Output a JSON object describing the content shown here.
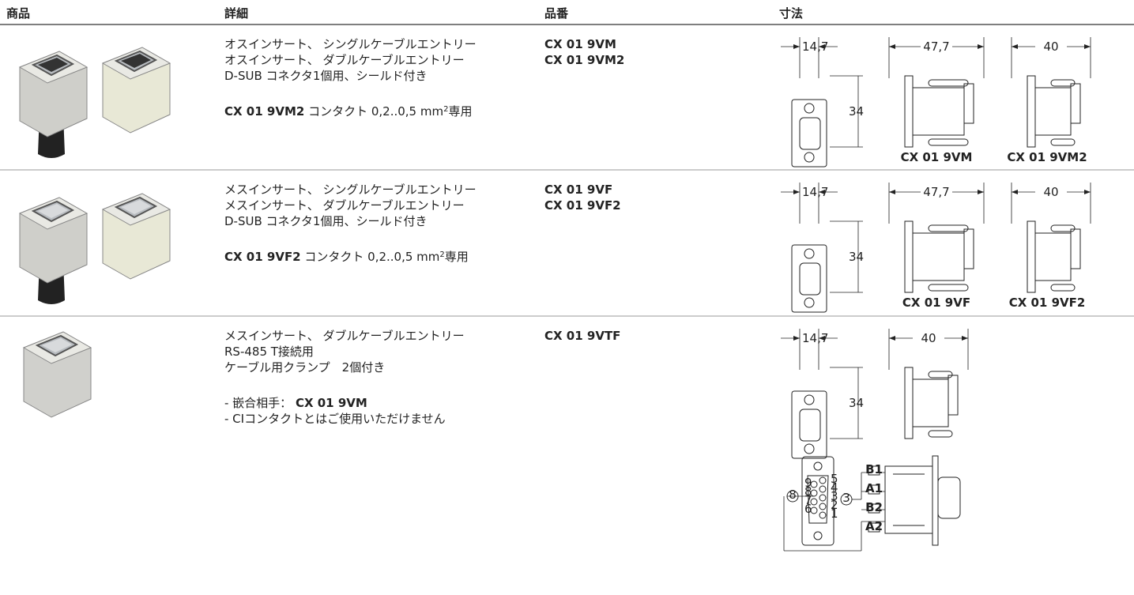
{
  "header": {
    "columns": [
      "商品",
      "詳細",
      "品番",
      "寸法"
    ]
  },
  "rows": [
    {
      "details": [
        [
          [
            {
              "text": "オスインサート、 シングルケーブルエントリー"
            }
          ],
          [
            {
              "text": "オスインサート、 ダブルケーブルエントリー"
            }
          ],
          [
            {
              "text": "D-SUB コネクタ1個用、シールド付き"
            }
          ]
        ],
        [
          [
            {
              "text": "CX 01 9VM2",
              "style": "bold"
            },
            {
              "text": " コンタクト 0,2..0,5 mm"
            },
            {
              "text": "2",
              "style": "sup"
            },
            {
              "text": "専用"
            }
          ]
        ]
      ],
      "part_numbers": [
        "CX 01 9VM",
        "CX 01 9VM2"
      ],
      "dimensions": {
        "front_width": "14,7",
        "height": "34",
        "views": [
          {
            "width": "47,7",
            "caption": "CX 01 9VM"
          },
          {
            "width": "40",
            "caption": "CX 01 9VM2"
          }
        ]
      }
    },
    {
      "details": [
        [
          [
            {
              "text": "メスインサート、 シングルケーブルエントリー"
            }
          ],
          [
            {
              "text": "メスインサート、 ダブルケーブルエントリー"
            }
          ],
          [
            {
              "text": "D-SUB コネクタ1個用、シールド付き"
            }
          ]
        ],
        [
          [
            {
              "text": "CX 01 9VF2",
              "style": "bold"
            },
            {
              "text": " コンタクト 0,2..0,5 mm"
            },
            {
              "text": "2",
              "style": "sup"
            },
            {
              "text": "専用"
            }
          ]
        ]
      ],
      "part_numbers": [
        "CX 01 9VF",
        "CX 01 9VF2"
      ],
      "dimensions": {
        "front_width": "14,7",
        "height": "34",
        "views": [
          {
            "width": "47,7",
            "caption": "CX 01 9VF"
          },
          {
            "width": "40",
            "caption": "CX 01 9VF2"
          }
        ]
      }
    },
    {
      "details": [
        [
          [
            {
              "text": "メスインサート、 ダブルケーブルエントリー"
            }
          ],
          [
            {
              "text": "RS-485 T接続用"
            }
          ],
          [
            {
              "text": "ケーブル用クランプ　2個付き"
            }
          ]
        ],
        [
          [
            {
              "text": "- 嵌合相手： "
            },
            {
              "text": "CX 01 9VM",
              "style": "bold"
            }
          ],
          [
            {
              "text": "- CIコンタクトとはご使用いただけません"
            }
          ]
        ]
      ],
      "part_numbers": [
        "CX 01 9VTF"
      ],
      "dimensions": {
        "front_width": "14,7",
        "height": "34",
        "views": [
          {
            "width": "40"
          }
        ]
      },
      "wiring": {
        "circles": [
          "8",
          "3"
        ],
        "wires": [
          "B1",
          "A1",
          "B2",
          "A2"
        ],
        "pins_left": [
          "9",
          "8",
          "7",
          "6"
        ],
        "pins_right": [
          "5",
          "4",
          "3",
          "2",
          "1"
        ]
      }
    }
  ]
}
